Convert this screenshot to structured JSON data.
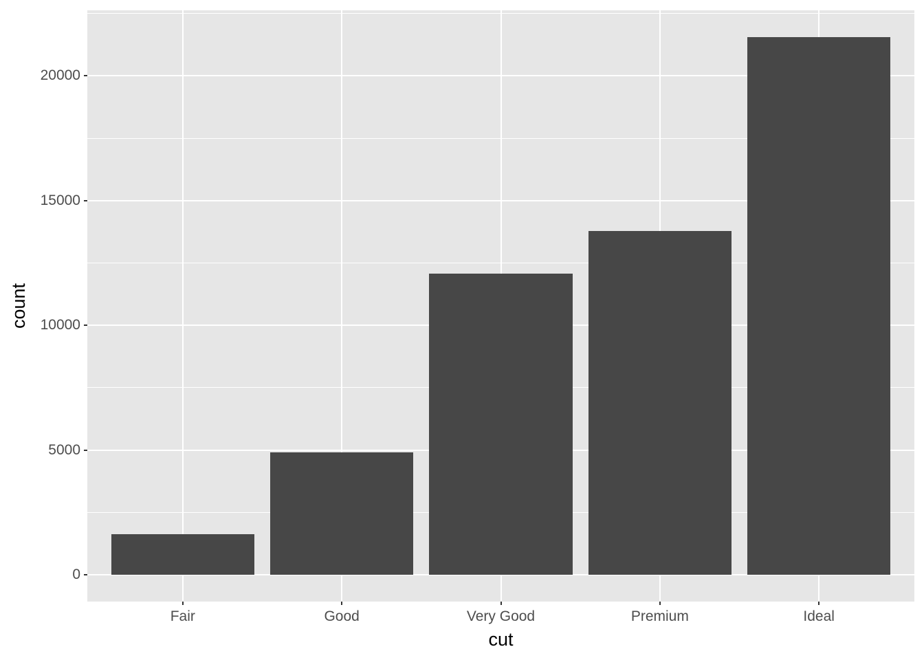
{
  "chart_data": {
    "type": "bar",
    "title": "",
    "xlabel": "cut",
    "ylabel": "count",
    "categories": [
      "Fair",
      "Good",
      "Very Good",
      "Premium",
      "Ideal"
    ],
    "values": [
      1610,
      4906,
      12082,
      13791,
      21551
    ],
    "y_major_ticks": [
      0,
      5000,
      10000,
      15000,
      20000
    ],
    "y_minor_ticks": [
      2500,
      7500,
      12500,
      17500,
      22500
    ],
    "ylim": [
      -1078,
      22629
    ],
    "bar_width_fraction": 0.9,
    "grid": "white major and minor horizontal lines, white major vertical line per category",
    "legend": "none",
    "style": {
      "figure_bg": "#FFFFFF",
      "panel_bg": "#E6E6E6",
      "bar_fill": "#474747",
      "grid_color": "#FFFFFF",
      "tick_mark_color": "#333333",
      "tick_label_color": "#4D4D4D",
      "axis_title_color": "#000000"
    }
  }
}
